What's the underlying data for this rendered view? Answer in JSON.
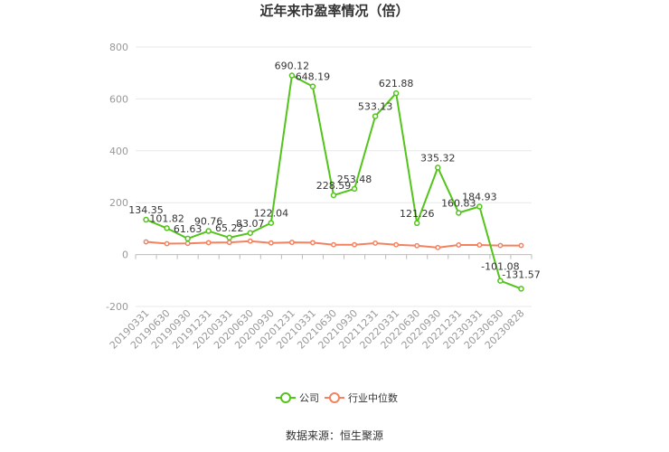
{
  "chart_data": {
    "type": "line",
    "title": "近年来市盈率情况（倍）",
    "categories": [
      "20190331",
      "20190630",
      "20190930",
      "20191231",
      "20200331",
      "20200630",
      "20200930",
      "20201231",
      "20210331",
      "20210630",
      "20210930",
      "20211231",
      "20220331",
      "20220630",
      "20220930",
      "20221231",
      "20230331",
      "20230630",
      "20230828"
    ],
    "series": [
      {
        "name": "公司",
        "color": "#52c41a",
        "values": [
          134.35,
          101.82,
          61.63,
          90.76,
          65.22,
          83.07,
          122.04,
          690.12,
          648.19,
          228.59,
          253.48,
          533.13,
          621.88,
          121.26,
          335.32,
          160.83,
          184.93,
          -101.08,
          -131.57
        ],
        "labels": [
          "134.35",
          "101.82",
          "61.63",
          "90.76",
          "65.22",
          "83.07",
          "122.04",
          "690.12",
          "648.19",
          "228.59",
          "253.48",
          "533.13",
          "621.88",
          "121.26",
          "335.32",
          "160.83",
          "184.93",
          "-101.08",
          "-131.57"
        ]
      },
      {
        "name": "行业中位数",
        "color": "#f4825f",
        "values": [
          49,
          42,
          43,
          46,
          47,
          52,
          45,
          47,
          46,
          38,
          38,
          44,
          38,
          34,
          27,
          37,
          37,
          35,
          35
        ]
      }
    ],
    "yticks": [
      800,
      600,
      400,
      200,
      0,
      -200
    ],
    "ylim": [
      -200,
      800
    ],
    "grid": true,
    "legend_position": "bottom"
  },
  "source_text": "数据来源：恒生聚源"
}
